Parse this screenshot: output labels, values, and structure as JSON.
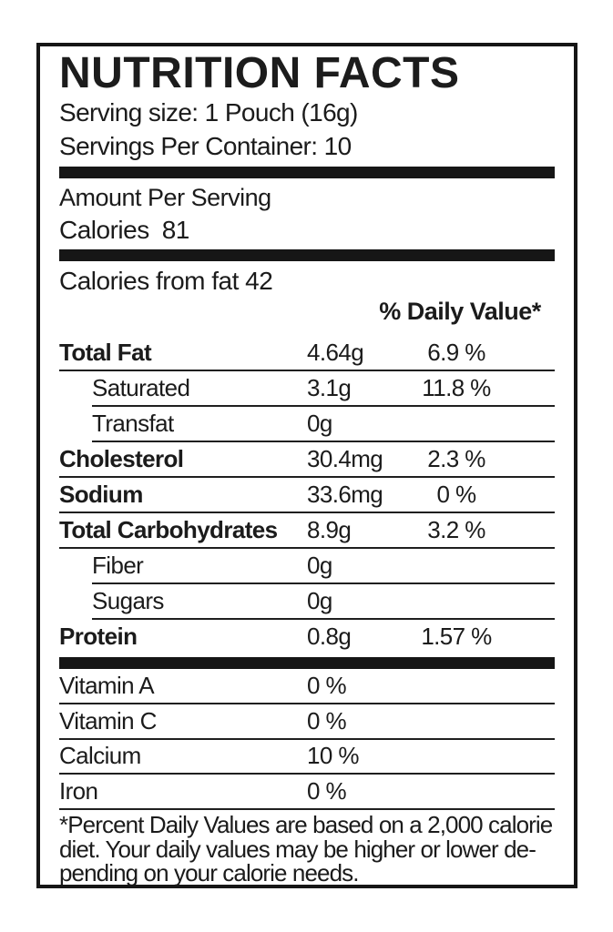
{
  "label": {
    "title": "NUTRITION FACTS",
    "serving_size": "Serving size: 1 Pouch (16g)",
    "servings_per_container": "Servings Per Container: 10",
    "amount_per_serving": "Amount Per Serving",
    "calories": {
      "label": "Calories",
      "value": "81"
    },
    "calories_from_fat": "Calories from fat 42",
    "daily_value_header": "% Daily Value*",
    "nutrients": [
      {
        "label": "Total Fat",
        "amount": "4.64g",
        "dv": "6.9 %"
      },
      {
        "label": "Saturated",
        "amount": "3.1g",
        "dv": "11.8 %"
      },
      {
        "label": "Transfat",
        "amount": "0g",
        "dv": ""
      },
      {
        "label": "Cholesterol",
        "amount": "30.4mg",
        "dv": "2.3 %"
      },
      {
        "label": "Sodium",
        "amount": "33.6mg",
        "dv": "0 %"
      },
      {
        "label": "Total Carbohydrates",
        "amount": "8.9g",
        "dv": "3.2 %"
      },
      {
        "label": "Fiber",
        "amount": "0g",
        "dv": ""
      },
      {
        "label": "Sugars",
        "amount": "0g",
        "dv": ""
      },
      {
        "label": "Protein",
        "amount": "0.8g",
        "dv": "1.57 %"
      }
    ],
    "vitamins": [
      {
        "label": "Vitamin A",
        "value": "0 %"
      },
      {
        "label": "Vitamin C",
        "value": "0 %"
      },
      {
        "label": "Calcium",
        "value": "10 %"
      },
      {
        "label": "Iron",
        "value": "0 %"
      }
    ],
    "footnote_lines": [
      "*Percent Daily Values are based on a 2,000 calorie",
      "diet. Your daily values may be higher or lower de-",
      "pending on your calorie needs."
    ],
    "colors": {
      "text": "#1b1b1b",
      "bars": "#161616",
      "background": "#ffffff"
    }
  }
}
